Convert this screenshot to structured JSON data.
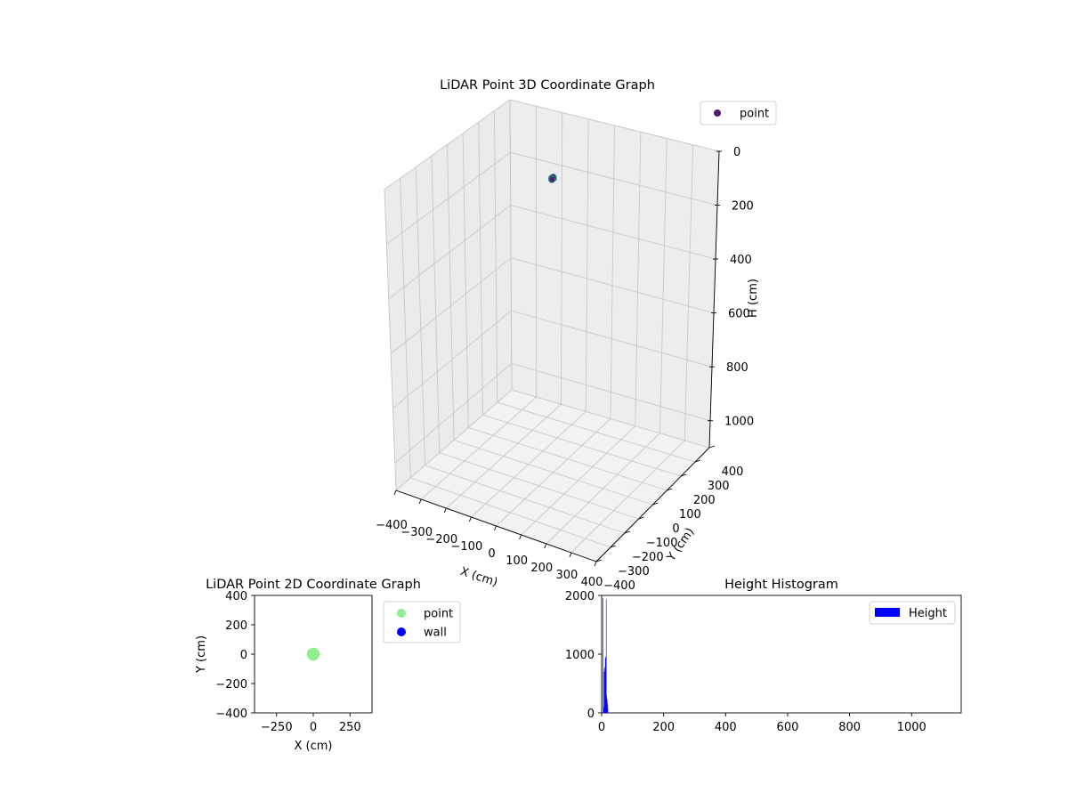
{
  "chart_data": [
    {
      "type": "scatter",
      "title": "LiDAR Point 3D Coordinate Graph",
      "xlabel": "X (cm)",
      "ylabel": "Y (cm)",
      "zlabel": "H (cm)",
      "xlim": [
        -400,
        400
      ],
      "ylim": [
        -400,
        400
      ],
      "zlim": [
        1100,
        0
      ],
      "xticks": [
        -400,
        -300,
        -200,
        -100,
        0,
        100,
        200,
        300,
        400
      ],
      "yticks": [
        -400,
        -300,
        -200,
        -100,
        0,
        100,
        200,
        300,
        400
      ],
      "zticks": [
        0,
        200,
        400,
        600,
        800,
        1000
      ],
      "x_tick_labels": [
        "−400",
        "−300",
        "−200",
        "−100",
        "0",
        "100",
        "200",
        "300",
        "400"
      ],
      "y_tick_labels": [
        "−400",
        "−300",
        "−200",
        "−100",
        "0",
        "100",
        "200",
        "300",
        "400"
      ],
      "z_tick_labels": [
        "0",
        "200",
        "400",
        "600",
        "800",
        "1000"
      ],
      "grid": true,
      "legend_position": "top-right",
      "series": [
        {
          "name": "point",
          "color": "#4b1c6e",
          "points": [
            {
              "x": 0,
              "y": 0,
              "z": 15
            },
            {
              "x": 3,
              "y": 2,
              "z": 18
            },
            {
              "x": -3,
              "y": -2,
              "z": 20
            },
            {
              "x": 2,
              "y": -3,
              "z": 14
            },
            {
              "x": -2,
              "y": 3,
              "z": 22
            },
            {
              "x": 4,
              "y": 0,
              "z": 12
            },
            {
              "x": -4,
              "y": 1,
              "z": 17
            },
            {
              "x": 1,
              "y": 4,
              "z": 19
            },
            {
              "x": 0,
              "y": -4,
              "z": 21
            },
            {
              "x": 3,
              "y": -1,
              "z": 10
            },
            {
              "x": -1,
              "y": -3,
              "z": 16
            },
            {
              "x": -3,
              "y": 3,
              "z": 23
            }
          ]
        }
      ]
    },
    {
      "type": "scatter",
      "title": "LiDAR Point 2D Coordinate Graph",
      "xlabel": "X (cm)",
      "ylabel": "Y (cm)",
      "xlim": [
        -400,
        400
      ],
      "ylim": [
        -400,
        400
      ],
      "xticks": [
        -250,
        0,
        250
      ],
      "yticks": [
        -400,
        -200,
        0,
        200,
        400
      ],
      "x_tick_labels": [
        "−250",
        "0",
        "250"
      ],
      "y_tick_labels": [
        "−400",
        "−200",
        "0",
        "200",
        "400"
      ],
      "grid": false,
      "legend_position": "outside-right",
      "series": [
        {
          "name": "point",
          "color": "#90ee90",
          "points": [
            {
              "x": 0,
              "y": 0
            },
            {
              "x": 6,
              "y": 4
            },
            {
              "x": -6,
              "y": -4
            },
            {
              "x": 5,
              "y": -5
            },
            {
              "x": -5,
              "y": 5
            },
            {
              "x": 8,
              "y": 0
            },
            {
              "x": -8,
              "y": 1
            },
            {
              "x": 2,
              "y": 8
            },
            {
              "x": 0,
              "y": -8
            }
          ]
        },
        {
          "name": "wall",
          "color": "#0000ff",
          "points": []
        }
      ]
    },
    {
      "type": "bar",
      "title": "Height Histogram",
      "xlim": [
        0,
        1160
      ],
      "ylim": [
        0,
        2000
      ],
      "xticks": [
        0,
        200,
        400,
        600,
        800,
        1000
      ],
      "yticks": [
        0,
        1000,
        2000
      ],
      "x_tick_labels": [
        "0",
        "200",
        "400",
        "600",
        "800",
        "1000"
      ],
      "y_tick_labels": [
        "0",
        "1000",
        "2000"
      ],
      "grid": false,
      "legend_position": "top-right",
      "series": [
        {
          "name": "Height",
          "color": "#0000ff",
          "bins": [
            {
              "start": 0,
              "end": 3,
              "value": 0
            },
            {
              "start": 3,
              "end": 4,
              "value": 1950
            },
            {
              "start": 4,
              "end": 6,
              "value": 0
            },
            {
              "start": 6,
              "end": 7,
              "value": 100
            },
            {
              "start": 7,
              "end": 8,
              "value": 700
            },
            {
              "start": 8,
              "end": 9,
              "value": 750
            },
            {
              "start": 9,
              "end": 10,
              "value": 780
            },
            {
              "start": 10,
              "end": 11,
              "value": 700
            },
            {
              "start": 11,
              "end": 12,
              "value": 950
            },
            {
              "start": 12,
              "end": 13,
              "value": 950
            },
            {
              "start": 13,
              "end": 14,
              "value": 920
            },
            {
              "start": 14,
              "end": 15,
              "value": 1930
            },
            {
              "start": 15,
              "end": 16,
              "value": 300
            },
            {
              "start": 16,
              "end": 17,
              "value": 250
            },
            {
              "start": 17,
              "end": 18,
              "value": 220
            },
            {
              "start": 18,
              "end": 19,
              "value": 150
            },
            {
              "start": 19,
              "end": 20,
              "value": 80
            }
          ]
        }
      ]
    }
  ]
}
